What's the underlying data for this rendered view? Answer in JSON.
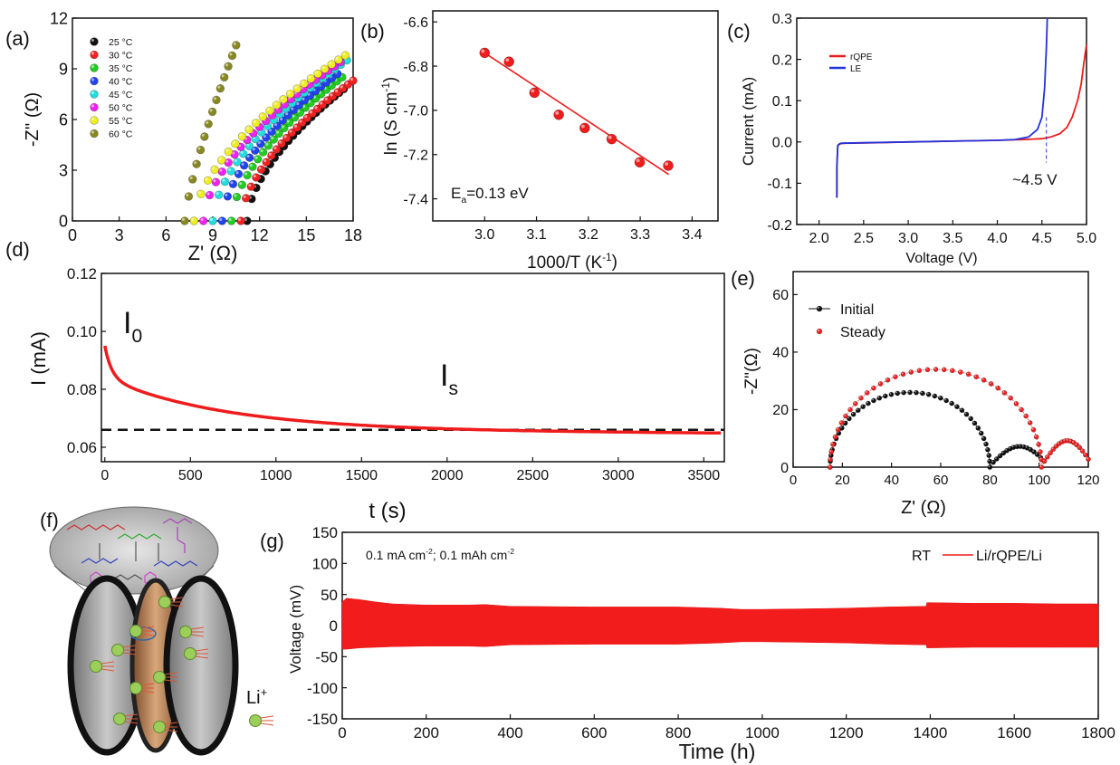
{
  "panel_labels": [
    "(a)",
    "(b)",
    "(c)",
    "(d)",
    "(e)",
    "(f)",
    "(g)"
  ],
  "colors": {
    "red": "#ee1c1c",
    "blue": "#2233dd",
    "axis": "#111111",
    "line_red": "#e8221f",
    "nyquist_series": [
      "#111111",
      "#ee2222",
      "#22cc22",
      "#2244ee",
      "#22dddd",
      "#ee22ee",
      "#eeee22",
      "#888822"
    ]
  },
  "chart_data": [
    {
      "panel": "(a)",
      "type": "scatter",
      "xlabel": "Z' (Ω)",
      "ylabel": "-Z'' (Ω)",
      "xlim": [
        0,
        18
      ],
      "ylim": [
        0,
        12
      ],
      "xticks": [
        0,
        3,
        6,
        9,
        12,
        15,
        18
      ],
      "yticks": [
        0,
        3,
        6,
        9,
        12
      ],
      "legend_position": "top-left",
      "series": [
        {
          "name": "25 °C",
          "color": "#111111",
          "x0": 11.2,
          "x_end": 17.4,
          "y_end": 7.8,
          "curve": 1.7,
          "n": 22
        },
        {
          "name": "30 °C",
          "color": "#ee2222",
          "x0": 10.8,
          "x_end": 18.0,
          "y_end": 8.3,
          "curve": 1.7,
          "n": 23
        },
        {
          "name": "35 °C",
          "color": "#22cc22",
          "x0": 10.2,
          "x_end": 17.3,
          "y_end": 8.5,
          "curve": 1.7,
          "n": 22
        },
        {
          "name": "40 °C",
          "color": "#2244ee",
          "x0": 9.6,
          "x_end": 17.0,
          "y_end": 8.7,
          "curve": 1.7,
          "n": 22
        },
        {
          "name": "45 °C",
          "color": "#22dddd",
          "x0": 9.0,
          "x_end": 17.6,
          "y_end": 9.5,
          "curve": 1.7,
          "n": 23
        },
        {
          "name": "50 °C",
          "color": "#ee22ee",
          "x0": 8.4,
          "x_end": 17.2,
          "y_end": 9.4,
          "curve": 1.7,
          "n": 23
        },
        {
          "name": "55 °C",
          "color": "#eeee22",
          "x0": 7.8,
          "x_end": 17.5,
          "y_end": 9.8,
          "curve": 1.7,
          "n": 23
        },
        {
          "name": "60 °C",
          "color": "#888822",
          "x0": 7.2,
          "x_end": 10.5,
          "y_end": 10.4,
          "curve": 1.3,
          "n": 14
        }
      ]
    },
    {
      "panel": "(b)",
      "type": "scatter",
      "xlabel": "1000/T (K",
      "xlabel_sup": "-1",
      "xlabel_tail": ")",
      "ylabel": "ln (S cm",
      "ylabel_sup": "-1",
      "ylabel_tail": ")",
      "xlim": [
        2.9,
        3.45
      ],
      "ylim": [
        -7.5,
        -6.55
      ],
      "xticks": [
        3.0,
        3.1,
        3.2,
        3.3,
        3.4
      ],
      "yticks": [
        -6.6,
        -6.8,
        -7.0,
        -7.2,
        -7.4
      ],
      "annotation_main": "E",
      "annotation_sub": "a",
      "annotation_tail": "=0.13 eV",
      "points": {
        "x": [
          3.0,
          3.047,
          3.096,
          3.143,
          3.193,
          3.245,
          3.299,
          3.354
        ],
        "y": [
          -6.74,
          -6.78,
          -6.92,
          -7.02,
          -7.08,
          -7.13,
          -7.235,
          -7.25
        ]
      },
      "fit": {
        "x": [
          3.0,
          3.355
        ],
        "y": [
          -6.74,
          -7.29
        ]
      }
    },
    {
      "panel": "(c)",
      "type": "line",
      "xlabel": "Voltage (V)",
      "ylabel": "Current (mA)",
      "xlim": [
        1.75,
        5.0
      ],
      "ylim": [
        -0.2,
        0.3
      ],
      "xticks": [
        2.0,
        2.5,
        3.0,
        3.5,
        4.0,
        4.5,
        5.0
      ],
      "yticks": [
        -0.2,
        -0.1,
        0.0,
        0.1,
        0.2,
        0.3
      ],
      "annotation": "~4.5 V",
      "legend_position": "top-left",
      "series": [
        {
          "name": "rQPE",
          "color": "#ee1c1c",
          "x": [
            2.2,
            2.2,
            2.21,
            2.23,
            2.3,
            2.6,
            3.0,
            3.5,
            4.0,
            4.3,
            4.5,
            4.6,
            4.7,
            4.78,
            4.84,
            4.9,
            4.94,
            4.97,
            5.0
          ],
          "y": [
            -0.135,
            -0.06,
            -0.01,
            -0.004,
            -0.003,
            -0.002,
            0.0,
            0.002,
            0.004,
            0.006,
            0.008,
            0.012,
            0.02,
            0.035,
            0.06,
            0.1,
            0.14,
            0.19,
            0.235
          ]
        },
        {
          "name": "LE",
          "color": "#2233dd",
          "x": [
            2.2,
            2.2,
            2.21,
            2.25,
            2.5,
            3.0,
            3.5,
            4.0,
            4.2,
            4.35,
            4.45,
            4.5,
            4.53,
            4.55,
            4.56
          ],
          "y": [
            -0.135,
            -0.06,
            -0.008,
            -0.003,
            -0.002,
            0.0,
            0.002,
            0.004,
            0.006,
            0.012,
            0.03,
            0.06,
            0.13,
            0.23,
            0.3
          ]
        }
      ],
      "marker_x": 4.55
    },
    {
      "panel": "(d)",
      "type": "line",
      "xlabel": "t (s)",
      "ylabel": "I (mA)",
      "xlim": [
        -20,
        3620
      ],
      "ylim": [
        0.055,
        0.12
      ],
      "xticks": [
        0,
        500,
        1000,
        1500,
        2000,
        2500,
        3000,
        3500
      ],
      "yticks": [
        0.06,
        0.08,
        0.1,
        0.12
      ],
      "label_I0_main": "I",
      "label_I0_sub": "0",
      "label_Is_main": "I",
      "label_Is_sub": "s",
      "curve": {
        "i_start": 0.095,
        "i_steady": 0.066,
        "tau1": 40,
        "amp1": 0.011,
        "tau2": 700,
        "amp2": 0.018,
        "t_end": 3600
      },
      "dashed_level": 0.066
    },
    {
      "panel": "(e)",
      "type": "scatter",
      "xlabel": "Z' (Ω)",
      "ylabel": "-Z''(Ω)",
      "xlim": [
        0,
        120
      ],
      "ylim": [
        0,
        68
      ],
      "xticks": [
        0,
        20,
        40,
        60,
        80,
        100,
        120
      ],
      "yticks": [
        0,
        20,
        40,
        60
      ],
      "legend_position": "top-left",
      "series": [
        {
          "name": "Initial",
          "color": "#111111",
          "r0": 15,
          "arc_end": 80,
          "arc_peak": 26,
          "tail_end": 102,
          "tail_peak": 7
        },
        {
          "name": "Steady",
          "color": "#ee2222",
          "r0": 15,
          "arc_end": 101,
          "arc_peak": 34,
          "tail_end": 120,
          "tail_peak": 9
        }
      ]
    },
    {
      "panel": "(g)",
      "type": "area",
      "xlabel": "Time (h)",
      "ylabel": "Voltage (mV)",
      "xlim": [
        0,
        1800
      ],
      "ylim": [
        -150,
        150
      ],
      "xticks": [
        0,
        200,
        400,
        600,
        800,
        1000,
        1200,
        1400,
        1600,
        1800
      ],
      "yticks": [
        -150,
        -100,
        -50,
        0,
        50,
        100,
        150
      ],
      "condition_main1": "0.1 mA cm",
      "condition_sup1": "-2",
      "condition_main2": "; 0.1 mAh cm",
      "condition_sup2": "-2",
      "legend_prefix": "RT",
      "series_name": "Li/rQPE/Li",
      "envelope": {
        "x": [
          0,
          10,
          40,
          80,
          120,
          200,
          300,
          340,
          400,
          600,
          800,
          900,
          950,
          1000,
          1100,
          1200,
          1300,
          1390,
          1392,
          1500,
          1600,
          1700,
          1800
        ],
        "upper": [
          38,
          44,
          42,
          38,
          35,
          33,
          33,
          34,
          31,
          30,
          30,
          28,
          26,
          26,
          27,
          28,
          30,
          31,
          37,
          36,
          36,
          35,
          35
        ],
        "lower": [
          -38,
          -38,
          -36,
          -35,
          -34,
          -33,
          -33,
          -34,
          -31,
          -30,
          -30,
          -28,
          -26,
          -26,
          -27,
          -28,
          -30,
          -31,
          -36,
          -35,
          -35,
          -35,
          -35
        ]
      }
    }
  ],
  "schematic": {
    "ion_label": "Li",
    "ion_sup": "+"
  }
}
